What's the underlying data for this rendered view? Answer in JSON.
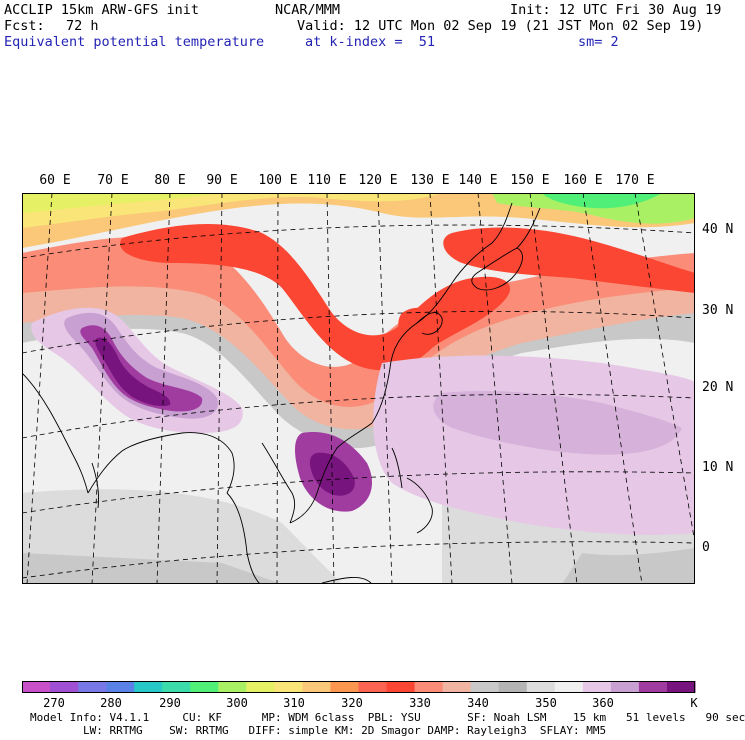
{
  "header": {
    "model": "ACCLIP 15km ARW-GFS init",
    "org": "NCAR/MMM",
    "init": "Init: 12 UTC Fri 30 Aug 19",
    "fcst_label": "Fcst:",
    "fcst_value": "72 h",
    "valid": "Valid: 12 UTC Mon 02 Sep 19 (21 JST Mon 02 Sep 19)",
    "field": "Equivalent potential temperature",
    "level": "at k-index =  51",
    "smooth": "sm= 2"
  },
  "map": {
    "lon_labels": [
      "60 E",
      "70 E",
      "80 E",
      "90 E",
      "100 E",
      "110 E",
      "120 E",
      "130 E",
      "140 E",
      "150 E",
      "160 E",
      "170 E"
    ],
    "lat_labels": [
      "40 N",
      "30 N",
      "20 N",
      "10 N",
      "0"
    ]
  },
  "colorbar": {
    "colors": [
      "#c850c8",
      "#a050d2",
      "#7878e6",
      "#5a82e6",
      "#28c8c8",
      "#3cdcaa",
      "#50f078",
      "#aaf064",
      "#e6f064",
      "#fae678",
      "#fac878",
      "#fa9650",
      "#fa6450",
      "#fa4632",
      "#fa8c78",
      "#f0b4a0",
      "#c8c8c8",
      "#b4b4b4",
      "#dcdcdc",
      "#f0f0f0",
      "#e6c8e6",
      "#c8a0d2",
      "#a03ca0",
      "#78147d"
    ],
    "labels": [
      "270",
      "280",
      "290",
      "300",
      "310",
      "320",
      "330",
      "340",
      "350",
      "360"
    ],
    "unit": "K"
  },
  "footer": {
    "line1": "Model Info: V4.1.1     CU: KF      MP: WDM 6class  PBL: YSU       SF: Noah LSM    15 km   51 levels   90 sec",
    "line2": "        LW: RRTMG    SW: RRTMG   DIFF: simple KM: 2D Smagor DAMP: Rayleigh3  SFLAY: MM5"
  }
}
